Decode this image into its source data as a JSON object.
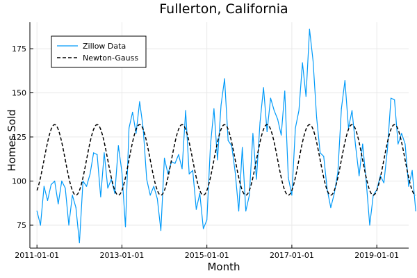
{
  "chart_data": {
    "type": "line",
    "title": "Fullerton, California",
    "xlabel": "Month",
    "ylabel": "Homes Sold",
    "x_start": "2011-01",
    "xlim_months": [
      -2,
      105
    ],
    "ylim": [
      62,
      190
    ],
    "x_ticks": [
      {
        "label": "2011-01-01",
        "month": 0
      },
      {
        "label": "2013-01-01",
        "month": 24
      },
      {
        "label": "2015-01-01",
        "month": 48
      },
      {
        "label": "2017-01-01",
        "month": 72
      },
      {
        "label": "2019-01-01",
        "month": 96
      }
    ],
    "y_ticks": [
      75,
      100,
      125,
      150,
      175
    ],
    "grid": true,
    "legend_position": "top-left",
    "series": [
      {
        "name": "Zillow Data",
        "color": "#009af9",
        "style": "solid",
        "values": [
          83,
          75,
          97,
          89,
          98,
          100,
          87,
          100,
          96,
          75,
          92,
          85,
          65,
          100,
          97,
          104,
          116,
          115,
          91,
          116,
          96,
          101,
          93,
          120,
          105,
          74,
          130,
          139,
          127,
          145,
          130,
          101,
          92,
          97,
          90,
          72,
          113,
          104,
          111,
          110,
          115,
          107,
          140,
          104,
          106,
          84,
          93,
          73,
          78,
          120,
          141,
          112,
          143,
          158,
          123,
          120,
          105,
          83,
          119,
          83,
          92,
          127,
          101,
          133,
          153,
          128,
          147,
          140,
          135,
          126,
          151,
          102,
          92,
          130,
          140,
          167,
          148,
          186,
          168,
          136,
          116,
          114,
          95,
          85,
          93,
          105,
          141,
          157,
          130,
          140,
          120,
          103,
          121,
          100,
          75,
          92,
          95,
          103,
          99,
          118,
          147,
          146,
          121,
          127,
          121,
          97,
          106,
          83
        ]
      },
      {
        "name": "Newton-Gauss",
        "color": "#000000",
        "style": "dashed",
        "model": {
          "mean": 112,
          "amplitude": 20,
          "period_months": 12,
          "peak_offset_months": 5
        }
      }
    ]
  }
}
